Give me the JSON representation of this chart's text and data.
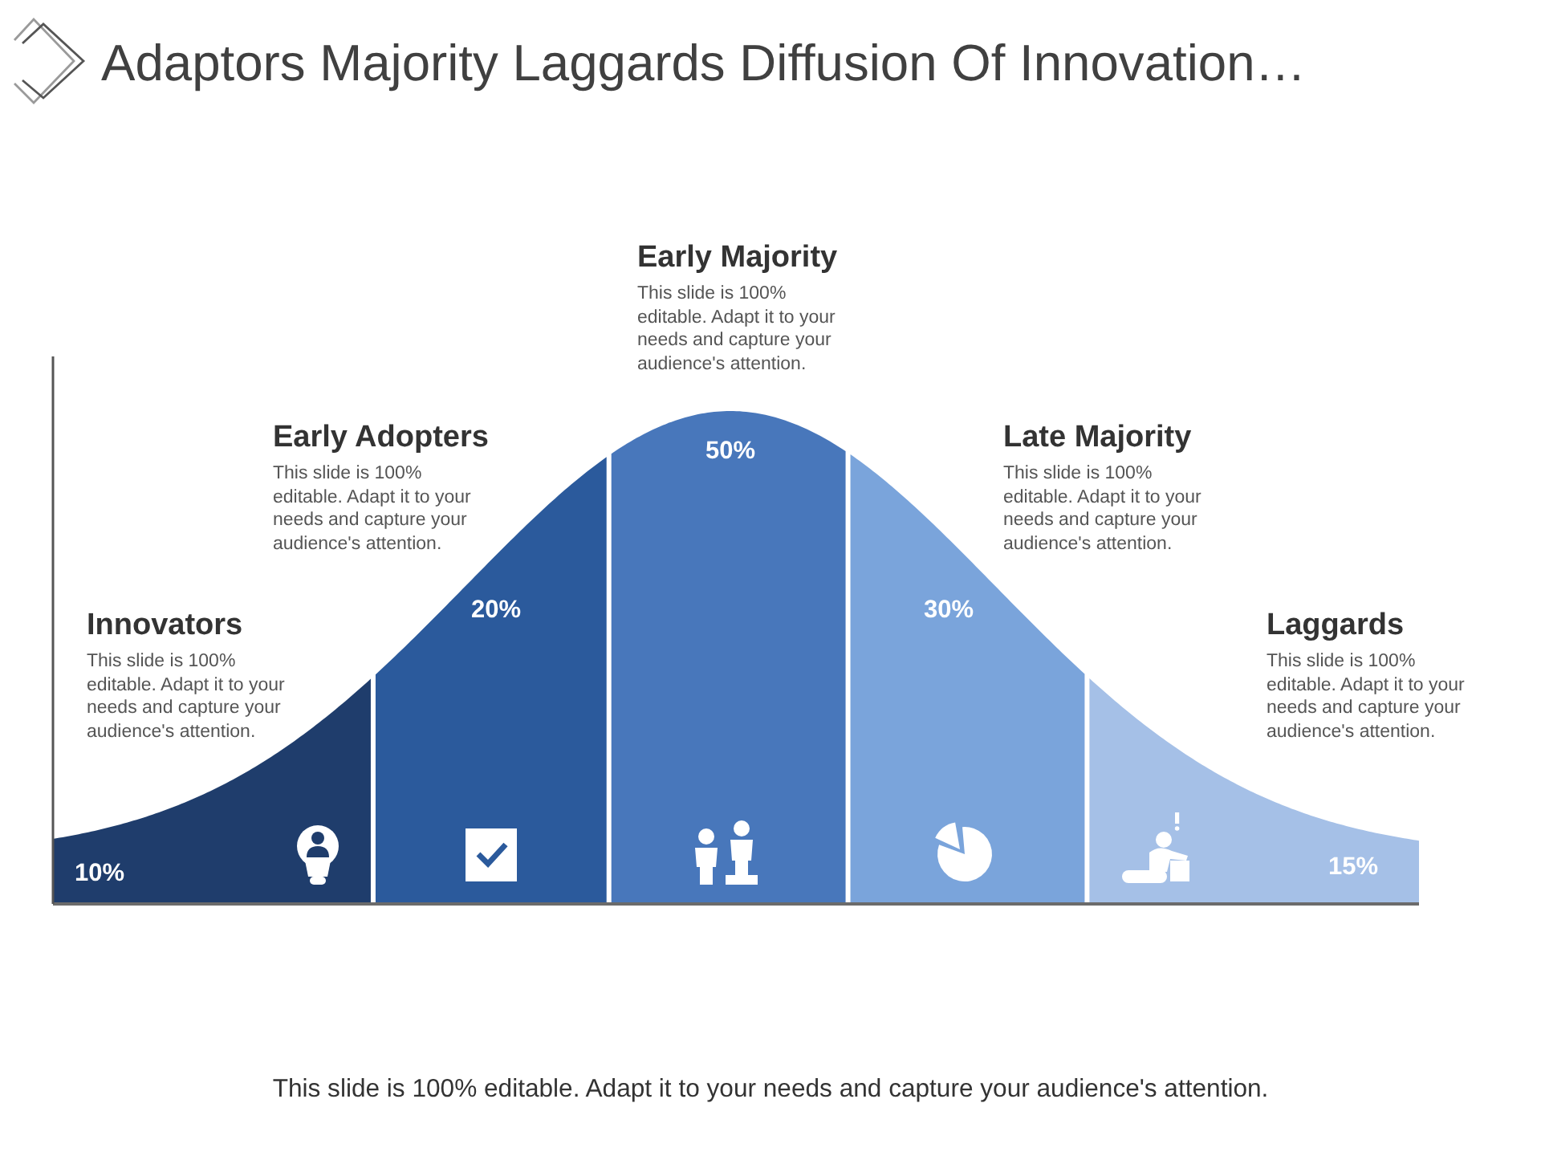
{
  "chart_data": {
    "type": "other",
    "title": "Adaptors Majority Laggards Diffusion Of Innovation…",
    "categories": [
      "Innovators",
      "Early Adopters",
      "Early Majority",
      "Late Majority",
      "Laggards"
    ],
    "values": [
      10,
      20,
      50,
      30,
      15
    ],
    "value_labels": [
      "10%",
      "20%",
      "50%",
      "30%",
      "15%"
    ],
    "colors": [
      "#1f3d6c",
      "#2b5a9c",
      "#4877bb",
      "#7aa4db",
      "#a5c0e7"
    ],
    "annotations": [
      "This slide is 100% editable. Adapt it to your needs and capture your audience's attention.",
      "This slide is 100% editable. Adapt it to your needs and capture your audience's attention.",
      "This slide is 100% editable. Adapt it to your needs and capture your audience's attention.",
      "This slide is 100% editable. Adapt it to your needs and capture your audience's attention.",
      "This slide is 100% editable. Adapt it to your needs and capture your audience's attention.",
      "This slide is 100% editable. Adapt it to your needs and capture your audience's attention."
    ]
  }
}
